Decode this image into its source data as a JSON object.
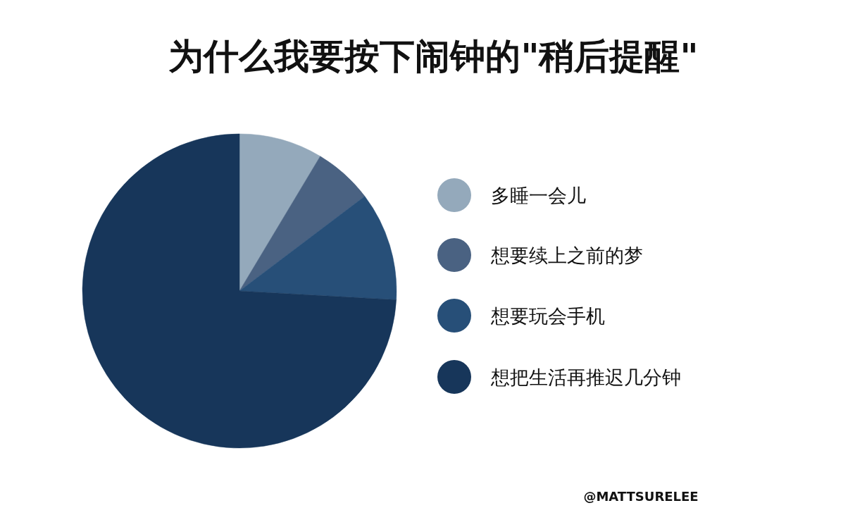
{
  "chart_data": {
    "type": "pie",
    "title": "为什么我要按下闹钟的\"稍后提醒\"",
    "categories": [
      "多睡一会儿",
      "想要续上之前的梦",
      "想要玩会手机",
      "想把生活再推迟几分钟"
    ],
    "values": [
      8.6,
      6.1,
      11.2,
      74.1
    ],
    "colors": [
      "#94a9bb",
      "#4a6282",
      "#274f78",
      "#17365a"
    ],
    "legend": "right",
    "annotations": [
      "@MATTSURELEE"
    ]
  }
}
